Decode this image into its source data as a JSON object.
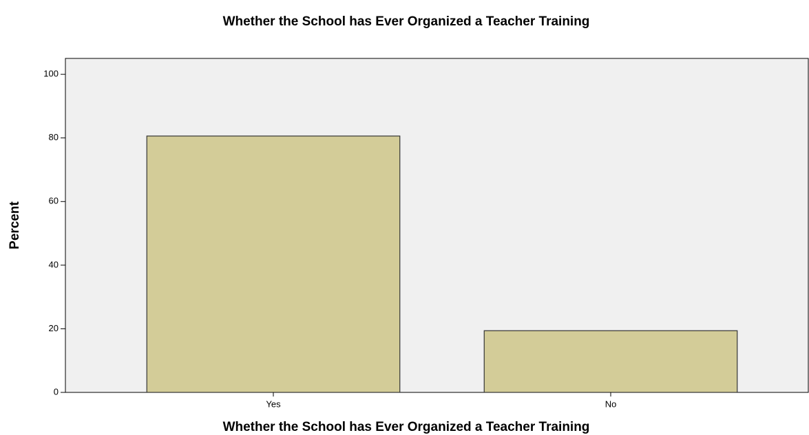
{
  "chart_data": {
    "type": "bar",
    "title": "Whether the School has Ever Organized a Teacher Training",
    "x_label": "Whether the School has Ever Organized a Teacher Training",
    "y_label": "Percent",
    "categories": [
      "Yes",
      "No"
    ],
    "values": [
      80.6,
      19.4
    ],
    "color": "#d3cc98",
    "ylim": [
      0,
      105
    ],
    "yticks": [
      0,
      20,
      40,
      60,
      80,
      100
    ],
    "grid": false
  }
}
